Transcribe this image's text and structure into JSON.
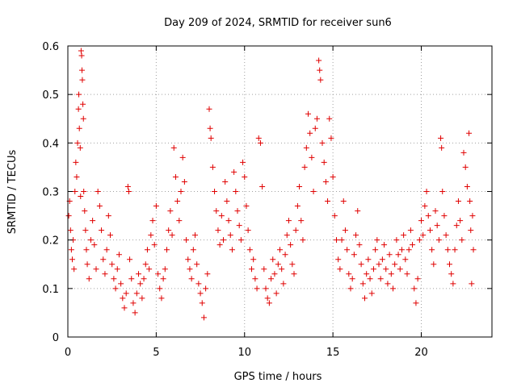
{
  "chart_data": {
    "type": "scatter",
    "title": "Day 209 of 2024, SRMTID for receiver sun6",
    "xlabel": "GPS time / hours",
    "ylabel": "SRMTID / TECUs",
    "xlim": [
      0,
      24
    ],
    "ylim": [
      0,
      0.6
    ],
    "xticks": [
      "0",
      "5",
      "10",
      "15",
      "20"
    ],
    "xtick_values": [
      0,
      5,
      10,
      15,
      20
    ],
    "yticks": [
      "0",
      "0.1",
      "0.2",
      "0.3",
      "0.4",
      "0.5",
      "0.6"
    ],
    "ytick_values": [
      0,
      0.1,
      0.2,
      0.3,
      0.4,
      0.5,
      0.6
    ],
    "grid": true,
    "marker": "+",
    "color": "#e00000",
    "series": [
      {
        "name": "SRMTID",
        "points": [
          [
            0.05,
            0.25
          ],
          [
            0.1,
            0.28
          ],
          [
            0.15,
            0.22
          ],
          [
            0.2,
            0.18
          ],
          [
            0.25,
            0.16
          ],
          [
            0.3,
            0.2
          ],
          [
            0.35,
            0.14
          ],
          [
            0.4,
            0.3
          ],
          [
            0.45,
            0.36
          ],
          [
            0.5,
            0.33
          ],
          [
            0.55,
            0.4
          ],
          [
            0.6,
            0.47
          ],
          [
            0.62,
            0.5
          ],
          [
            0.65,
            0.43
          ],
          [
            0.7,
            0.39
          ],
          [
            0.72,
            0.29
          ],
          [
            0.75,
            0.59
          ],
          [
            0.78,
            0.58
          ],
          [
            0.8,
            0.55
          ],
          [
            0.82,
            0.53
          ],
          [
            0.85,
            0.48
          ],
          [
            0.88,
            0.45
          ],
          [
            0.9,
            0.3
          ],
          [
            0.95,
            0.26
          ],
          [
            1.0,
            0.22
          ],
          [
            1.05,
            0.18
          ],
          [
            1.1,
            0.15
          ],
          [
            1.2,
            0.12
          ],
          [
            1.3,
            0.2
          ],
          [
            1.4,
            0.24
          ],
          [
            1.5,
            0.19
          ],
          [
            1.6,
            0.14
          ],
          [
            1.7,
            0.3
          ],
          [
            1.8,
            0.27
          ],
          [
            1.9,
            0.22
          ],
          [
            2.0,
            0.16
          ],
          [
            2.1,
            0.13
          ],
          [
            2.2,
            0.18
          ],
          [
            2.3,
            0.25
          ],
          [
            2.4,
            0.21
          ],
          [
            2.5,
            0.15
          ],
          [
            2.6,
            0.12
          ],
          [
            2.7,
            0.1
          ],
          [
            2.8,
            0.14
          ],
          [
            2.9,
            0.17
          ],
          [
            3.0,
            0.11
          ],
          [
            3.1,
            0.08
          ],
          [
            3.2,
            0.06
          ],
          [
            3.3,
            0.09
          ],
          [
            3.4,
            0.31
          ],
          [
            3.45,
            0.3
          ],
          [
            3.5,
            0.16
          ],
          [
            3.6,
            0.12
          ],
          [
            3.7,
            0.07
          ],
          [
            3.8,
            0.05
          ],
          [
            3.9,
            0.09
          ],
          [
            4.0,
            0.13
          ],
          [
            4.1,
            0.11
          ],
          [
            4.2,
            0.08
          ],
          [
            4.3,
            0.12
          ],
          [
            4.4,
            0.15
          ],
          [
            4.5,
            0.18
          ],
          [
            4.6,
            0.14
          ],
          [
            4.7,
            0.21
          ],
          [
            4.8,
            0.24
          ],
          [
            4.9,
            0.19
          ],
          [
            5.0,
            0.27
          ],
          [
            5.1,
            0.13
          ],
          [
            5.2,
            0.1
          ],
          [
            5.3,
            0.08
          ],
          [
            5.4,
            0.12
          ],
          [
            5.5,
            0.14
          ],
          [
            5.6,
            0.18
          ],
          [
            5.7,
            0.22
          ],
          [
            5.8,
            0.26
          ],
          [
            5.9,
            0.21
          ],
          [
            6.0,
            0.39
          ],
          [
            6.1,
            0.33
          ],
          [
            6.2,
            0.28
          ],
          [
            6.3,
            0.24
          ],
          [
            6.4,
            0.3
          ],
          [
            6.5,
            0.37
          ],
          [
            6.6,
            0.32
          ],
          [
            6.7,
            0.2
          ],
          [
            6.8,
            0.16
          ],
          [
            6.9,
            0.14
          ],
          [
            7.0,
            0.12
          ],
          [
            7.1,
            0.18
          ],
          [
            7.2,
            0.21
          ],
          [
            7.3,
            0.15
          ],
          [
            7.4,
            0.11
          ],
          [
            7.5,
            0.09
          ],
          [
            7.6,
            0.07
          ],
          [
            7.7,
            0.04
          ],
          [
            7.8,
            0.1
          ],
          [
            7.9,
            0.13
          ],
          [
            8.0,
            0.47
          ],
          [
            8.05,
            0.43
          ],
          [
            8.1,
            0.41
          ],
          [
            8.2,
            0.35
          ],
          [
            8.3,
            0.3
          ],
          [
            8.4,
            0.26
          ],
          [
            8.5,
            0.22
          ],
          [
            8.6,
            0.19
          ],
          [
            8.7,
            0.25
          ],
          [
            8.8,
            0.2
          ],
          [
            8.9,
            0.32
          ],
          [
            9.0,
            0.28
          ],
          [
            9.1,
            0.24
          ],
          [
            9.2,
            0.21
          ],
          [
            9.3,
            0.18
          ],
          [
            9.4,
            0.34
          ],
          [
            9.5,
            0.3
          ],
          [
            9.6,
            0.26
          ],
          [
            9.7,
            0.23
          ],
          [
            9.8,
            0.2
          ],
          [
            9.9,
            0.36
          ],
          [
            10.0,
            0.33
          ],
          [
            10.1,
            0.27
          ],
          [
            10.2,
            0.22
          ],
          [
            10.3,
            0.18
          ],
          [
            10.4,
            0.14
          ],
          [
            10.5,
            0.16
          ],
          [
            10.6,
            0.12
          ],
          [
            10.7,
            0.1
          ],
          [
            10.8,
            0.41
          ],
          [
            10.9,
            0.4
          ],
          [
            11.0,
            0.31
          ],
          [
            11.1,
            0.14
          ],
          [
            11.2,
            0.1
          ],
          [
            11.3,
            0.08
          ],
          [
            11.4,
            0.07
          ],
          [
            11.5,
            0.12
          ],
          [
            11.6,
            0.16
          ],
          [
            11.7,
            0.13
          ],
          [
            11.8,
            0.09
          ],
          [
            11.9,
            0.15
          ],
          [
            12.0,
            0.18
          ],
          [
            12.1,
            0.14
          ],
          [
            12.2,
            0.11
          ],
          [
            12.3,
            0.17
          ],
          [
            12.4,
            0.21
          ],
          [
            12.5,
            0.24
          ],
          [
            12.6,
            0.19
          ],
          [
            12.7,
            0.15
          ],
          [
            12.8,
            0.13
          ],
          [
            12.9,
            0.22
          ],
          [
            13.0,
            0.27
          ],
          [
            13.1,
            0.31
          ],
          [
            13.2,
            0.24
          ],
          [
            13.3,
            0.2
          ],
          [
            13.4,
            0.35
          ],
          [
            13.5,
            0.39
          ],
          [
            13.6,
            0.46
          ],
          [
            13.7,
            0.42
          ],
          [
            13.8,
            0.37
          ],
          [
            13.9,
            0.3
          ],
          [
            14.0,
            0.43
          ],
          [
            14.1,
            0.45
          ],
          [
            14.2,
            0.57
          ],
          [
            14.25,
            0.55
          ],
          [
            14.3,
            0.53
          ],
          [
            14.4,
            0.4
          ],
          [
            14.5,
            0.36
          ],
          [
            14.6,
            0.32
          ],
          [
            14.7,
            0.28
          ],
          [
            14.8,
            0.45
          ],
          [
            14.9,
            0.41
          ],
          [
            15.0,
            0.33
          ],
          [
            15.1,
            0.25
          ],
          [
            15.2,
            0.2
          ],
          [
            15.3,
            0.16
          ],
          [
            15.4,
            0.14
          ],
          [
            15.5,
            0.2
          ],
          [
            15.6,
            0.28
          ],
          [
            15.7,
            0.22
          ],
          [
            15.8,
            0.18
          ],
          [
            15.9,
            0.13
          ],
          [
            16.0,
            0.1
          ],
          [
            16.1,
            0.12
          ],
          [
            16.2,
            0.17
          ],
          [
            16.3,
            0.21
          ],
          [
            16.4,
            0.26
          ],
          [
            16.5,
            0.19
          ],
          [
            16.6,
            0.15
          ],
          [
            16.7,
            0.11
          ],
          [
            16.8,
            0.08
          ],
          [
            16.9,
            0.13
          ],
          [
            17.0,
            0.16
          ],
          [
            17.1,
            0.12
          ],
          [
            17.2,
            0.09
          ],
          [
            17.3,
            0.14
          ],
          [
            17.4,
            0.18
          ],
          [
            17.5,
            0.2
          ],
          [
            17.6,
            0.15
          ],
          [
            17.7,
            0.12
          ],
          [
            17.8,
            0.16
          ],
          [
            17.9,
            0.19
          ],
          [
            18.0,
            0.14
          ],
          [
            18.1,
            0.11
          ],
          [
            18.2,
            0.17
          ],
          [
            18.3,
            0.13
          ],
          [
            18.4,
            0.1
          ],
          [
            18.5,
            0.15
          ],
          [
            18.6,
            0.2
          ],
          [
            18.7,
            0.17
          ],
          [
            18.8,
            0.14
          ],
          [
            18.9,
            0.18
          ],
          [
            19.0,
            0.21
          ],
          [
            19.1,
            0.16
          ],
          [
            19.2,
            0.13
          ],
          [
            19.3,
            0.18
          ],
          [
            19.4,
            0.22
          ],
          [
            19.5,
            0.19
          ],
          [
            19.6,
            0.1
          ],
          [
            19.7,
            0.07
          ],
          [
            19.8,
            0.12
          ],
          [
            19.9,
            0.2
          ],
          [
            20.0,
            0.24
          ],
          [
            20.1,
            0.21
          ],
          [
            20.2,
            0.27
          ],
          [
            20.3,
            0.3
          ],
          [
            20.4,
            0.25
          ],
          [
            20.5,
            0.22
          ],
          [
            20.6,
            0.18
          ],
          [
            20.7,
            0.15
          ],
          [
            20.8,
            0.26
          ],
          [
            20.9,
            0.23
          ],
          [
            21.0,
            0.2
          ],
          [
            21.1,
            0.41
          ],
          [
            21.15,
            0.39
          ],
          [
            21.2,
            0.3
          ],
          [
            21.3,
            0.25
          ],
          [
            21.4,
            0.21
          ],
          [
            21.5,
            0.18
          ],
          [
            21.6,
            0.15
          ],
          [
            21.7,
            0.13
          ],
          [
            21.8,
            0.11
          ],
          [
            21.9,
            0.18
          ],
          [
            22.0,
            0.23
          ],
          [
            22.1,
            0.28
          ],
          [
            22.2,
            0.24
          ],
          [
            22.3,
            0.2
          ],
          [
            22.4,
            0.38
          ],
          [
            22.5,
            0.35
          ],
          [
            22.6,
            0.31
          ],
          [
            22.7,
            0.42
          ],
          [
            22.75,
            0.28
          ],
          [
            22.8,
            0.22
          ],
          [
            22.85,
            0.11
          ],
          [
            22.9,
            0.25
          ],
          [
            22.95,
            0.18
          ]
        ]
      }
    ]
  }
}
